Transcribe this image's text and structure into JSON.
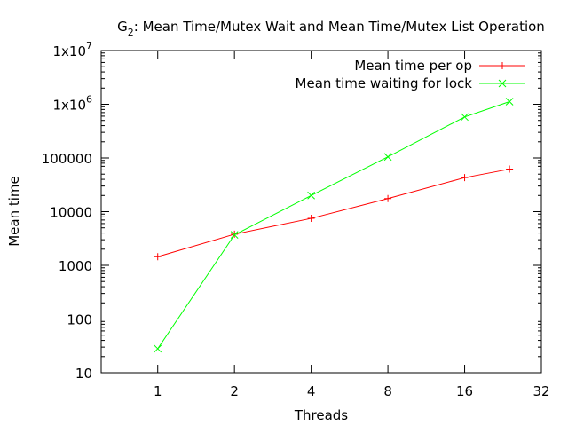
{
  "chart_data": {
    "type": "line",
    "title_main": "G",
    "title_sub": "2",
    "title_rest": ": Mean Time/Mutex Wait and Mean Time/Mutex List Operation",
    "xlabel": "Threads",
    "ylabel": "Mean time",
    "x_scale": "log2",
    "y_scale": "log10",
    "xlim": [
      0.6,
      32
    ],
    "ylim": [
      10,
      10000000
    ],
    "x_ticks": [
      1,
      2,
      4,
      8,
      16,
      32
    ],
    "x_tick_labels": [
      "1",
      "2",
      "4",
      "8",
      "16",
      "32"
    ],
    "y_ticks": [
      10,
      100,
      1000,
      10000,
      100000,
      1000000,
      10000000
    ],
    "y_tick_labels": [
      {
        "base": "10",
        "exp": ""
      },
      {
        "base": "100",
        "exp": ""
      },
      {
        "base": "1000",
        "exp": ""
      },
      {
        "base": "10000",
        "exp": ""
      },
      {
        "base": "100000",
        "exp": ""
      },
      {
        "base": "1x10",
        "exp": "6"
      },
      {
        "base": "1x10",
        "exp": "7"
      }
    ],
    "grid": false,
    "legend_position": "top-right",
    "series": [
      {
        "name": "Mean time per op",
        "color": "#ff0000",
        "marker": "plus",
        "x": [
          1,
          2,
          4,
          8,
          16,
          24
        ],
        "y": [
          1450,
          3800,
          7500,
          17500,
          43000,
          62000
        ]
      },
      {
        "name": "Mean time waiting for lock",
        "color": "#00ff00",
        "marker": "cross",
        "x": [
          1,
          2,
          4,
          8,
          16,
          24
        ],
        "y": [
          28,
          3700,
          20000,
          105000,
          580000,
          1120000
        ]
      }
    ]
  }
}
